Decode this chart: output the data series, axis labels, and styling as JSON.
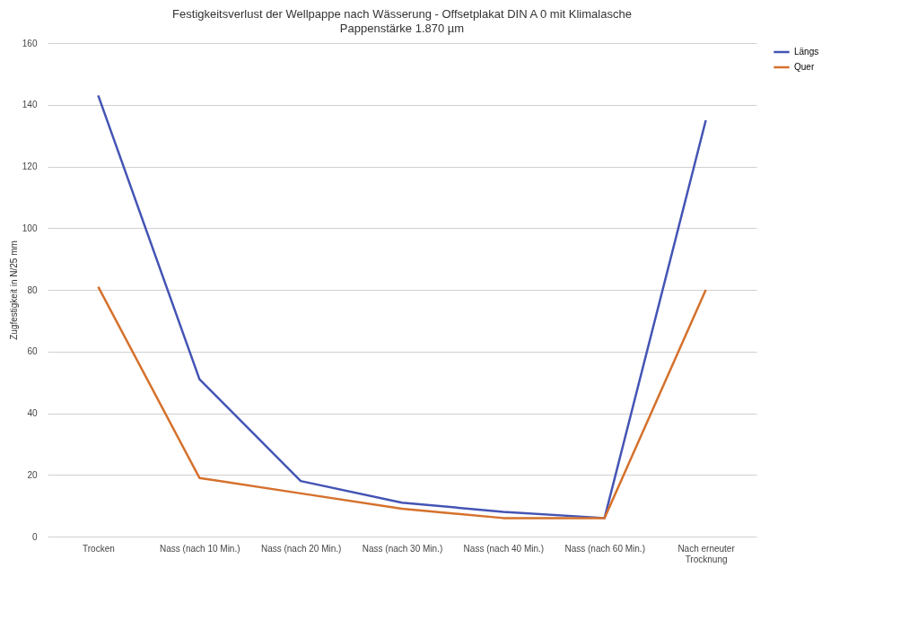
{
  "chart_data": {
    "type": "line",
    "title": "Festigkeitsverlust der Wellpappe nach Wässerung - Offsetplakat DIN A 0 mit Klimalasche",
    "subtitle": "Pappenstärke 1.870 µm",
    "ylabel": "Zugfestigkeit in N/25 mm",
    "categories": [
      "Trocken",
      "Nass (nach 10 Min.)",
      "Nass (nach 20 Min.)",
      "Nass (nach 30 Min.)",
      "Nass (nach 40 Min.)",
      "Nass (nach 60 Min.)",
      "Nach erneuter Trocknung"
    ],
    "series": [
      {
        "name": "Längs",
        "color": "#4454b4",
        "values": [
          143,
          51,
          18,
          11,
          8,
          6,
          135
        ]
      },
      {
        "name": "Quer",
        "color": "#d5712c",
        "values": [
          81,
          19,
          14,
          9,
          6,
          6,
          80
        ]
      }
    ],
    "ylim": [
      0,
      160
    ],
    "yticks": [
      0,
      20,
      40,
      60,
      80,
      100,
      120,
      140,
      160
    ],
    "grid": "y",
    "legend": "right",
    "marker": "none",
    "line_style": "solid"
  }
}
